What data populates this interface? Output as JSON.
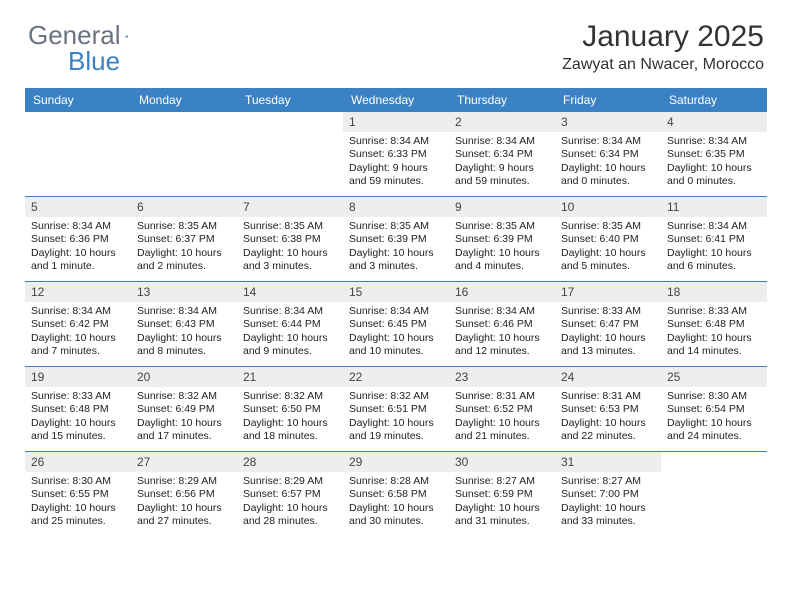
{
  "logo": {
    "text1": "General",
    "text2": "Blue"
  },
  "title": "January 2025",
  "location": "Zawyat an Nwacer, Morocco",
  "colors": {
    "headerBlue": "#3b82c4",
    "dayBg": "#eceeef",
    "logoGray": "#6b7280"
  },
  "dayNames": [
    "Sunday",
    "Monday",
    "Tuesday",
    "Wednesday",
    "Thursday",
    "Friday",
    "Saturday"
  ],
  "weeks": [
    [
      null,
      null,
      null,
      {
        "n": "1",
        "sr": "8:34 AM",
        "ss": "6:33 PM",
        "dl": "9 hours and 59 minutes."
      },
      {
        "n": "2",
        "sr": "8:34 AM",
        "ss": "6:34 PM",
        "dl": "9 hours and 59 minutes."
      },
      {
        "n": "3",
        "sr": "8:34 AM",
        "ss": "6:34 PM",
        "dl": "10 hours and 0 minutes."
      },
      {
        "n": "4",
        "sr": "8:34 AM",
        "ss": "6:35 PM",
        "dl": "10 hours and 0 minutes."
      }
    ],
    [
      {
        "n": "5",
        "sr": "8:34 AM",
        "ss": "6:36 PM",
        "dl": "10 hours and 1 minute."
      },
      {
        "n": "6",
        "sr": "8:35 AM",
        "ss": "6:37 PM",
        "dl": "10 hours and 2 minutes."
      },
      {
        "n": "7",
        "sr": "8:35 AM",
        "ss": "6:38 PM",
        "dl": "10 hours and 3 minutes."
      },
      {
        "n": "8",
        "sr": "8:35 AM",
        "ss": "6:39 PM",
        "dl": "10 hours and 3 minutes."
      },
      {
        "n": "9",
        "sr": "8:35 AM",
        "ss": "6:39 PM",
        "dl": "10 hours and 4 minutes."
      },
      {
        "n": "10",
        "sr": "8:35 AM",
        "ss": "6:40 PM",
        "dl": "10 hours and 5 minutes."
      },
      {
        "n": "11",
        "sr": "8:34 AM",
        "ss": "6:41 PM",
        "dl": "10 hours and 6 minutes."
      }
    ],
    [
      {
        "n": "12",
        "sr": "8:34 AM",
        "ss": "6:42 PM",
        "dl": "10 hours and 7 minutes."
      },
      {
        "n": "13",
        "sr": "8:34 AM",
        "ss": "6:43 PM",
        "dl": "10 hours and 8 minutes."
      },
      {
        "n": "14",
        "sr": "8:34 AM",
        "ss": "6:44 PM",
        "dl": "10 hours and 9 minutes."
      },
      {
        "n": "15",
        "sr": "8:34 AM",
        "ss": "6:45 PM",
        "dl": "10 hours and 10 minutes."
      },
      {
        "n": "16",
        "sr": "8:34 AM",
        "ss": "6:46 PM",
        "dl": "10 hours and 12 minutes."
      },
      {
        "n": "17",
        "sr": "8:33 AM",
        "ss": "6:47 PM",
        "dl": "10 hours and 13 minutes."
      },
      {
        "n": "18",
        "sr": "8:33 AM",
        "ss": "6:48 PM",
        "dl": "10 hours and 14 minutes."
      }
    ],
    [
      {
        "n": "19",
        "sr": "8:33 AM",
        "ss": "6:48 PM",
        "dl": "10 hours and 15 minutes."
      },
      {
        "n": "20",
        "sr": "8:32 AM",
        "ss": "6:49 PM",
        "dl": "10 hours and 17 minutes."
      },
      {
        "n": "21",
        "sr": "8:32 AM",
        "ss": "6:50 PM",
        "dl": "10 hours and 18 minutes."
      },
      {
        "n": "22",
        "sr": "8:32 AM",
        "ss": "6:51 PM",
        "dl": "10 hours and 19 minutes."
      },
      {
        "n": "23",
        "sr": "8:31 AM",
        "ss": "6:52 PM",
        "dl": "10 hours and 21 minutes."
      },
      {
        "n": "24",
        "sr": "8:31 AM",
        "ss": "6:53 PM",
        "dl": "10 hours and 22 minutes."
      },
      {
        "n": "25",
        "sr": "8:30 AM",
        "ss": "6:54 PM",
        "dl": "10 hours and 24 minutes."
      }
    ],
    [
      {
        "n": "26",
        "sr": "8:30 AM",
        "ss": "6:55 PM",
        "dl": "10 hours and 25 minutes."
      },
      {
        "n": "27",
        "sr": "8:29 AM",
        "ss": "6:56 PM",
        "dl": "10 hours and 27 minutes."
      },
      {
        "n": "28",
        "sr": "8:29 AM",
        "ss": "6:57 PM",
        "dl": "10 hours and 28 minutes."
      },
      {
        "n": "29",
        "sr": "8:28 AM",
        "ss": "6:58 PM",
        "dl": "10 hours and 30 minutes."
      },
      {
        "n": "30",
        "sr": "8:27 AM",
        "ss": "6:59 PM",
        "dl": "10 hours and 31 minutes."
      },
      {
        "n": "31",
        "sr": "8:27 AM",
        "ss": "7:00 PM",
        "dl": "10 hours and 33 minutes."
      },
      null
    ]
  ],
  "labels": {
    "sunrise": "Sunrise: ",
    "sunset": "Sunset: ",
    "daylight": "Daylight: "
  }
}
